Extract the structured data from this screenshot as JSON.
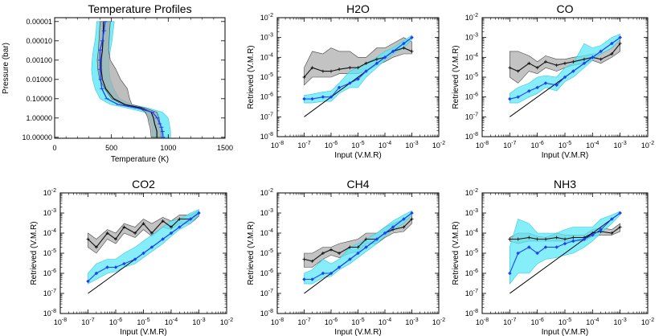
{
  "chart_data": [
    {
      "id": "temp",
      "type": "line",
      "title": "Temperature Profiles",
      "xlabel": "Temperature (K)",
      "ylabel": "Pressure (bar)",
      "xlim": [
        0,
        1500
      ],
      "xticks": [
        0,
        500,
        1000,
        1500
      ],
      "xtick_labels": [
        "0",
        "500",
        "1000",
        "1500"
      ],
      "ylim_log": [
        -5.2,
        1.05
      ],
      "yscale": "log",
      "yticks_exp": [
        -5,
        -4,
        -3,
        -2,
        -1,
        0,
        1
      ],
      "ytick_labels": [
        "0.00001",
        "0.00010",
        "0.00100",
        "0.01000",
        "0.10000",
        "1.00000",
        "10.00000"
      ],
      "pressure": [
        1e-05,
        3e-05,
        0.0001,
        0.0003,
        0.001,
        0.003,
        0.01,
        0.03,
        0.1,
        0.2,
        0.3,
        0.5,
        1,
        2,
        3,
        5,
        10
      ],
      "series": [
        {
          "role": "input_profile",
          "color": "#000000",
          "values": [
            430,
            428,
            425,
            420,
            410,
            410,
            420,
            450,
            520,
            620,
            760,
            850,
            870,
            880,
            890,
            900,
            900
          ]
        },
        {
          "role": "retrieved_profile",
          "color": "#1e40ff",
          "values": [
            445,
            435,
            420,
            400,
            400,
            400,
            405,
            415,
            460,
            560,
            720,
            860,
            905,
            925,
            940,
            950,
            955
          ]
        },
        {
          "role": "retrieved_range",
          "color": "#33e5f2",
          "lower": [
            370,
            365,
            355,
            340,
            330,
            325,
            335,
            355,
            400,
            490,
            640,
            790,
            830,
            850,
            860,
            860,
            860
          ],
          "upper": [
            525,
            515,
            505,
            490,
            480,
            480,
            490,
            520,
            570,
            680,
            820,
            950,
            1000,
            1010,
            1015,
            1020,
            1020
          ]
        },
        {
          "role": "input_range",
          "color": "#9a9a9a",
          "lower": [
            400,
            395,
            390,
            385,
            375,
            380,
            395,
            440,
            500,
            600,
            740,
            800,
            820,
            830,
            840,
            845,
            850
          ],
          "upper": [
            490,
            485,
            480,
            475,
            490,
            540,
            580,
            640,
            660,
            680,
            790,
            900,
            920,
            930,
            940,
            940,
            940
          ]
        }
      ]
    },
    {
      "id": "h2o",
      "type": "line",
      "title": "H2O",
      "xlabel": "Input (V.M.R)",
      "ylabel": "Retrieved (V.M.R)",
      "xscale": "log",
      "yscale": "log",
      "xlim_exp": [
        -8,
        -2
      ],
      "ylim_exp": [
        -8,
        -2
      ],
      "ticks_exp": [
        -8,
        -7,
        -6,
        -5,
        -4,
        -3,
        -2
      ],
      "x": [
        1e-07,
        2e-07,
        5e-07,
        1e-06,
        2e-06,
        5e-06,
        1e-05,
        2e-05,
        5e-05,
        0.0001,
        0.0002,
        0.0005,
        0.001
      ],
      "series": [
        {
          "role": "one_to_one",
          "color": "#000000",
          "x": [
            1e-07,
            0.001
          ],
          "values": [
            1e-07,
            0.001
          ]
        },
        {
          "role": "gray_median",
          "color": "#000000",
          "values": [
            1e-05,
            3e-05,
            2e-05,
            2e-05,
            2.5e-05,
            3e-05,
            3e-05,
            5e-05,
            8e-05,
            0.0001,
            0.0002,
            0.0003,
            0.0002
          ]
        },
        {
          "role": "gray_range",
          "color": "#a0a0a0",
          "lower": [
            4e-06,
            1e-05,
            1e-05,
            1e-05,
            1.5e-05,
            1.5e-05,
            1.5e-05,
            2e-05,
            4e-05,
            6e-05,
            0.0001,
            0.00015,
            0.00015
          ],
          "upper": [
            3e-05,
            0.0002,
            0.00015,
            0.0003,
            0.0002,
            0.0002,
            0.0001,
            0.0001,
            0.0003,
            0.0003,
            0.0005,
            0.001,
            0.0006
          ]
        },
        {
          "role": "blue_median",
          "color": "#1e40ff",
          "values": [
            8e-07,
            8e-07,
            1e-06,
            1e-06,
            3e-06,
            5e-06,
            8e-06,
            2e-05,
            5e-05,
            0.0001,
            0.0002,
            0.0005,
            0.001
          ]
        },
        {
          "role": "cyan_range",
          "color": "#33e5f2",
          "lower": [
            5e-07,
            5e-07,
            6e-07,
            6e-07,
            1.5e-06,
            3e-06,
            3e-06,
            1e-05,
            3e-05,
            7e-05,
            0.00015,
            0.0003,
            0.0008
          ],
          "upper": [
            1.2e-06,
            1.4e-06,
            1.8e-06,
            2e-06,
            5e-06,
            2e-05,
            3e-05,
            5e-05,
            0.0001,
            0.0002,
            0.0003,
            0.0007,
            0.0013
          ]
        }
      ]
    },
    {
      "id": "co",
      "type": "line",
      "title": "CO",
      "xlabel": "Input (V.M.R)",
      "ylabel": "Retrieved (V.M.R)",
      "xscale": "log",
      "yscale": "log",
      "xlim_exp": [
        -8,
        -2
      ],
      "ylim_exp": [
        -8,
        -2
      ],
      "ticks_exp": [
        -8,
        -7,
        -6,
        -5,
        -4,
        -3,
        -2
      ],
      "x": [
        1e-07,
        2e-07,
        5e-07,
        1e-06,
        2e-06,
        5e-06,
        1e-05,
        2e-05,
        5e-05,
        0.0001,
        0.0002,
        0.0005,
        0.001
      ],
      "series": [
        {
          "role": "one_to_one",
          "color": "#000000",
          "x": [
            1e-07,
            0.001
          ],
          "values": [
            1e-07,
            0.001
          ]
        },
        {
          "role": "gray_median",
          "color": "#000000",
          "values": [
            3e-05,
            2e-05,
            5e-05,
            3e-05,
            6e-05,
            4e-05,
            5e-05,
            6e-05,
            8e-05,
            0.0001,
            8e-05,
            0.00015,
            0.0005
          ]
        },
        {
          "role": "gray_range",
          "color": "#a0a0a0",
          "lower": [
            1e-05,
            5e-06,
            2e-05,
            1.5e-05,
            3e-05,
            2e-05,
            3e-05,
            4e-05,
            5e-05,
            7e-05,
            5e-05,
            0.0001,
            0.0002
          ],
          "upper": [
            0.0002,
            0.0002,
            0.00012,
            6e-05,
            0.00012,
            8e-05,
            8e-05,
            0.0001,
            0.00012,
            0.00015,
            0.00015,
            0.0003,
            0.0008
          ]
        },
        {
          "role": "blue_median",
          "color": "#1e40ff",
          "values": [
            8e-07,
            1e-06,
            2e-06,
            3e-06,
            5e-06,
            4e-06,
            1e-05,
            2e-05,
            5e-05,
            0.0001,
            0.0002,
            0.0005,
            0.001
          ]
        },
        {
          "role": "cyan_range",
          "color": "#33e5f2",
          "lower": [
            5e-07,
            5e-07,
            1e-06,
            1.5e-06,
            3e-06,
            2e-06,
            6e-06,
            1e-05,
            3e-05,
            7e-05,
            0.00015,
            0.0003,
            0.0008
          ],
          "upper": [
            1.5e-06,
            3e-06,
            5e-06,
            1e-05,
            1.2e-05,
            1e-05,
            3e-05,
            5e-05,
            0.0005,
            0.0003,
            0.0004,
            0.001,
            0.0015
          ]
        }
      ]
    },
    {
      "id": "co2",
      "type": "line",
      "title": "CO2",
      "xlabel": "Input (V.M.R)",
      "ylabel": "Retrieved (V.M.R)",
      "xscale": "log",
      "yscale": "log",
      "xlim_exp": [
        -8,
        -2
      ],
      "ylim_exp": [
        -8,
        -2
      ],
      "ticks_exp": [
        -8,
        -7,
        -6,
        -5,
        -4,
        -3,
        -2
      ],
      "x": [
        1e-07,
        2e-07,
        5e-07,
        1e-06,
        2e-06,
        5e-06,
        1e-05,
        2e-05,
        5e-05,
        0.0001,
        0.0002,
        0.0005,
        0.001
      ],
      "series": [
        {
          "role": "one_to_one",
          "color": "#000000",
          "x": [
            1e-07,
            0.001
          ],
          "values": [
            1e-07,
            0.001
          ]
        },
        {
          "role": "gray_median",
          "color": "#000000",
          "values": [
            5e-05,
            2e-05,
            0.0001,
            5e-05,
            0.0002,
            0.0001,
            0.0003,
            0.0001,
            0.0004,
            0.0002,
            0.0005,
            0.0005,
            0.001
          ]
        },
        {
          "role": "gray_range",
          "color": "#a0a0a0",
          "lower": [
            2e-05,
            1e-05,
            5e-05,
            3e-05,
            0.0001,
            6e-05,
            0.00015,
            7e-05,
            0.0002,
            0.00015,
            0.0003,
            0.0003,
            0.0007
          ],
          "upper": [
            0.0001,
            5e-05,
            0.00015,
            0.0001,
            0.0003,
            0.0002,
            0.0005,
            0.0003,
            0.0006,
            0.0004,
            0.0008,
            0.0008,
            0.0013
          ]
        },
        {
          "role": "blue_median",
          "color": "#1e40ff",
          "values": [
            4e-07,
            1e-06,
            2e-06,
            2e-06,
            3e-06,
            5e-06,
            1e-05,
            2e-05,
            5e-05,
            0.0001,
            0.0002,
            0.0005,
            0.001
          ]
        },
        {
          "role": "cyan_range",
          "color": "#33e5f2",
          "lower": [
            3e-07,
            5e-07,
            1e-06,
            1.2e-06,
            2e-06,
            3e-06,
            6e-06,
            1.2e-05,
            3e-05,
            7e-05,
            0.00015,
            0.0003,
            0.0008
          ],
          "upper": [
            1e-06,
            3e-06,
            5e-06,
            5e-06,
            1e-05,
            2e-05,
            4e-05,
            8e-05,
            0.0002,
            0.0004,
            0.0005,
            0.001,
            0.0015
          ]
        }
      ]
    },
    {
      "id": "ch4",
      "type": "line",
      "title": "CH4",
      "xlabel": "Input (V.M.R)",
      "ylabel": "Retrieved (V.M.R)",
      "xscale": "log",
      "yscale": "log",
      "xlim_exp": [
        -8,
        -2
      ],
      "ylim_exp": [
        -8,
        -2
      ],
      "ticks_exp": [
        -8,
        -7,
        -6,
        -5,
        -4,
        -3,
        -2
      ],
      "x": [
        1e-07,
        2e-07,
        5e-07,
        1e-06,
        2e-06,
        5e-06,
        1e-05,
        2e-05,
        5e-05,
        0.0001,
        0.0002,
        0.0005,
        0.001
      ],
      "series": [
        {
          "role": "one_to_one",
          "color": "#000000",
          "x": [
            1e-07,
            0.001
          ],
          "values": [
            1e-07,
            0.001
          ]
        },
        {
          "role": "gray_median",
          "color": "#000000",
          "values": [
            5e-06,
            4e-06,
            1e-05,
            1.5e-05,
            1e-05,
            2e-05,
            2e-05,
            5e-05,
            5e-05,
            0.0001,
            0.00015,
            0.0002,
            0.0005
          ]
        },
        {
          "role": "gray_range",
          "color": "#a0a0a0",
          "lower": [
            2e-06,
            2e-06,
            5e-06,
            8e-06,
            6e-06,
            1e-05,
            1.2e-05,
            3e-05,
            3e-05,
            6e-05,
            0.0001,
            0.00012,
            0.0003
          ],
          "upper": [
            1e-05,
            1e-05,
            2e-05,
            2e-05,
            3e-05,
            4e-05,
            5e-05,
            0.0001,
            0.0001,
            0.0002,
            0.0003,
            0.0005,
            0.001
          ]
        },
        {
          "role": "blue_median",
          "color": "#1e40ff",
          "values": [
            5e-07,
            5e-07,
            1e-06,
            1e-06,
            2e-06,
            5e-06,
            1e-05,
            2e-05,
            5e-05,
            0.0001,
            0.0002,
            0.0005,
            0.001
          ]
        },
        {
          "role": "cyan_range",
          "color": "#33e5f2",
          "lower": [
            3e-07,
            3e-07,
            6e-07,
            7e-07,
            1.5e-06,
            3e-06,
            6e-06,
            1.2e-05,
            3e-05,
            7e-05,
            0.00015,
            0.0003,
            0.0008
          ],
          "upper": [
            1e-06,
            1.5e-06,
            5e-06,
            3e-06,
            5e-06,
            2e-05,
            3e-05,
            5e-05,
            0.0001,
            0.0002,
            0.0004,
            0.0008,
            0.0013
          ]
        }
      ]
    },
    {
      "id": "nh3",
      "type": "line",
      "title": "NH3",
      "xlabel": "Input (V.M.R)",
      "ylabel": "Retrieved (V.M.R)",
      "xscale": "log",
      "yscale": "log",
      "xlim_exp": [
        -8,
        -2
      ],
      "ylim_exp": [
        -8,
        -2
      ],
      "ticks_exp": [
        -8,
        -7,
        -6,
        -5,
        -4,
        -3,
        -2
      ],
      "x": [
        1e-07,
        2e-07,
        5e-07,
        1e-06,
        2e-06,
        5e-06,
        1e-05,
        2e-05,
        5e-05,
        0.0001,
        0.0002,
        0.0005,
        0.001
      ],
      "series": [
        {
          "role": "one_to_one",
          "color": "#000000",
          "x": [
            1e-07,
            0.001
          ],
          "values": [
            1e-07,
            0.001
          ]
        },
        {
          "role": "gray_median",
          "color": "#000000",
          "values": [
            5e-05,
            5e-05,
            6e-05,
            5e-05,
            5e-05,
            6e-05,
            5e-05,
            6e-05,
            6e-05,
            0.0001,
            0.00012,
            0.0001,
            0.0002
          ]
        },
        {
          "role": "gray_range",
          "color": "#a0a0a0",
          "lower": [
            4e-05,
            3e-05,
            4e-05,
            4e-05,
            4e-05,
            4e-05,
            4e-05,
            4e-05,
            4e-05,
            7e-05,
            8e-05,
            8e-05,
            0.00012
          ],
          "upper": [
            6e-05,
            0.0001,
            0.0001,
            7e-05,
            6e-05,
            0.0001,
            8e-05,
            8e-05,
            8e-05,
            0.00015,
            0.00018,
            0.00015,
            0.0003
          ]
        },
        {
          "role": "blue_median",
          "color": "#1e40ff",
          "values": [
            1e-06,
            1e-05,
            2e-05,
            1e-05,
            2e-05,
            2e-05,
            3e-05,
            4e-05,
            5e-05,
            8e-05,
            0.00015,
            0.0005,
            0.001
          ]
        },
        {
          "role": "cyan_range",
          "color": "#33e5f2",
          "lower": [
            3e-07,
            1e-06,
            1e-06,
            3e-06,
            5e-06,
            6e-06,
            8e-06,
            1e-05,
            2e-05,
            4e-05,
            0.0001,
            0.0003,
            0.0008
          ],
          "upper": [
            2e-05,
            0.0005,
            0.0003,
            0.0001,
            0.0001,
            0.0001,
            0.00015,
            0.0002,
            0.0002,
            0.0002,
            0.0005,
            0.0008,
            0.0012
          ]
        }
      ]
    }
  ]
}
